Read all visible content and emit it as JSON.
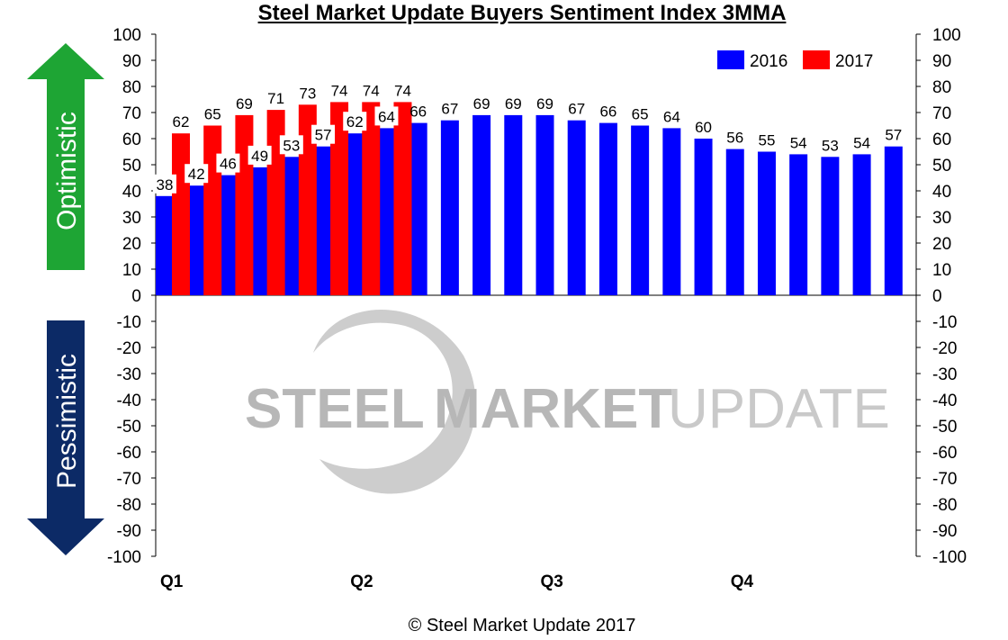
{
  "page": {
    "copyright": "© Steel Market Update 2017"
  },
  "chart_data": {
    "type": "bar",
    "title": "Steel Market Update Buyers Sentiment Index 3MMA",
    "ylim": [
      -100,
      100
    ],
    "y_ticks": [
      100,
      90,
      80,
      70,
      60,
      50,
      40,
      30,
      20,
      10,
      0,
      -10,
      -20,
      -30,
      -40,
      -50,
      -60,
      -70,
      -80,
      -90,
      -100
    ],
    "quarter_labels": [
      "Q1",
      "Q2",
      "Q3",
      "Q4"
    ],
    "legend_position": "top-right",
    "grid": false,
    "series": [
      {
        "name": "2016",
        "color": "#0000ff",
        "values": [
          38,
          42,
          46,
          49,
          53,
          57,
          62,
          64,
          66,
          67,
          69,
          69,
          69,
          67,
          66,
          65,
          64,
          60,
          56,
          55,
          54,
          53,
          54,
          57
        ]
      },
      {
        "name": "2017",
        "color": "#ff0000",
        "values": [
          62,
          65,
          69,
          71,
          73,
          74,
          74,
          74
        ]
      }
    ],
    "side_labels": {
      "up": "Optimistic",
      "down": "Pessimistic",
      "up_color": "#1ea534",
      "down_color": "#0c2a66"
    },
    "watermark": {
      "text_1": "STEEL",
      "text_2": "MARKET",
      "text_3": "UPDATE"
    }
  }
}
